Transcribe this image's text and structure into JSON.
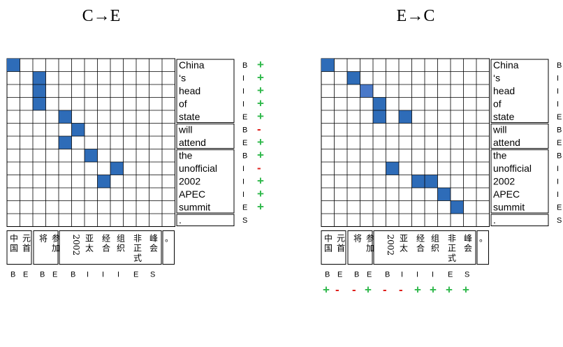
{
  "colors": {
    "cell": "#2e6cb8",
    "cell_light": "#4a79c9",
    "plus": "#2eb84a",
    "minus": "#e0201c",
    "grid": "#000000"
  },
  "panels": [
    {
      "title": "C→E",
      "highlighted": [
        [
          0,
          0
        ],
        [
          1,
          2
        ],
        [
          2,
          2
        ],
        [
          3,
          2
        ],
        [
          4,
          4
        ],
        [
          5,
          5
        ],
        [
          6,
          4
        ],
        [
          7,
          6
        ],
        [
          8,
          8
        ],
        [
          9,
          7
        ]
      ],
      "light": [],
      "side_labels": [
        "B",
        "I",
        "I",
        "I",
        "E",
        "B",
        "E",
        "B",
        "I",
        "I",
        "I",
        "E",
        "S"
      ],
      "side_marks": [
        "+",
        "+",
        "+",
        "+",
        "+",
        "-",
        "+",
        "+",
        "-",
        "+",
        "+",
        "+",
        ""
      ],
      "bottom_labels": [
        "B",
        "E",
        "B",
        "E",
        "B",
        "I",
        "I",
        "I",
        "E",
        "S"
      ],
      "bottom_marks": []
    },
    {
      "title": "E→C",
      "highlighted": [
        [
          0,
          0
        ],
        [
          1,
          2
        ],
        [
          3,
          4
        ],
        [
          4,
          4
        ],
        [
          4,
          6
        ],
        [
          8,
          5
        ],
        [
          9,
          7
        ],
        [
          9,
          8
        ],
        [
          10,
          9
        ],
        [
          11,
          10
        ]
      ],
      "light": [
        [
          2,
          3
        ]
      ],
      "side_labels": [
        "B",
        "I",
        "I",
        "I",
        "E",
        "B",
        "E",
        "B",
        "I",
        "I",
        "I",
        "E",
        "S"
      ],
      "side_marks": [],
      "bottom_labels": [
        "B",
        "E",
        "B",
        "E",
        "B",
        "I",
        "I",
        "I",
        "E",
        "S"
      ],
      "bottom_marks": [
        "+",
        "-",
        "-",
        "+",
        "-",
        "-",
        "+",
        "+",
        "+",
        "+"
      ]
    }
  ],
  "english_words": [
    "China",
    "‘s",
    "head",
    "of",
    "state",
    "will",
    "attend",
    "the",
    "unofficial",
    "2002",
    "APEC",
    "summit",
    "."
  ],
  "chinese_groups": [
    {
      "chars": [
        "中国",
        "元首"
      ]
    },
    {
      "chars": [
        "将",
        "参加"
      ]
    },
    {
      "chars": [
        "2002",
        "亚太",
        "经合",
        "组织",
        "非正式",
        "峰会"
      ]
    },
    {
      "chars": [
        "。"
      ]
    }
  ]
}
